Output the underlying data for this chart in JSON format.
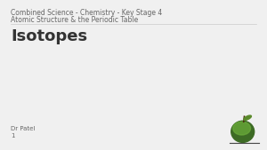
{
  "bg_color": "#f0f0f0",
  "subtitle_line1": "Combined Science - Chemistry - Key Stage 4",
  "subtitle_line2": "Atomic Structure & the Periodic Table",
  "title": "Isotopes",
  "footer_name": "Dr Patel",
  "footer_number": "1",
  "subtitle_color": "#666666",
  "title_color": "#333333",
  "footer_color": "#666666",
  "subtitle_fontsize": 5.5,
  "title_fontsize": 13,
  "footer_fontsize": 5.0
}
